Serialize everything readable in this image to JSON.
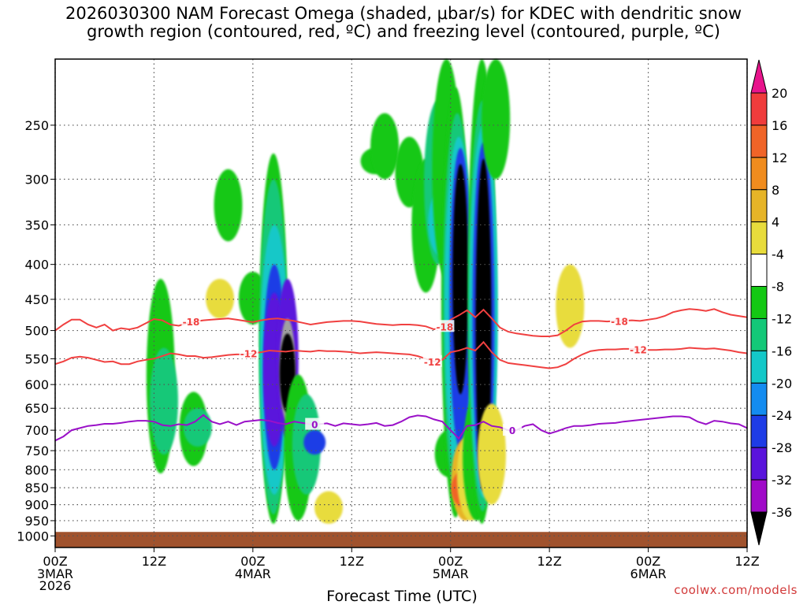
{
  "title": {
    "line1": "2026030300 NAM Forecast Omega (shaded, μbar/s) for KDEC with dendritic snow",
    "line2": "growth region (contoured, red, ºC) and freezing level (contoured, purple, ºC)"
  },
  "credit": "coolwx.com/models",
  "chart_data": {
    "type": "heatmap",
    "title": "2026030300 NAM Forecast Omega (shaded, μbar/s) for KDEC with dendritic snow growth region (contoured, red, ºC) and freezing level (contoured, purple, ºC)",
    "xlabel": "Forecast Time (UTC)",
    "ylabel": "",
    "x_range_hours": [
      0,
      84
    ],
    "y_range_mb": [
      1040,
      200
    ],
    "y_scale": "log",
    "grid": true,
    "x_ticks": [
      {
        "hour": 0,
        "label": "00Z",
        "sub": [
          "3MAR",
          "2026"
        ]
      },
      {
        "hour": 12,
        "label": "12Z",
        "sub": []
      },
      {
        "hour": 24,
        "label": "00Z",
        "sub": [
          "4MAR"
        ]
      },
      {
        "hour": 36,
        "label": "12Z",
        "sub": []
      },
      {
        "hour": 48,
        "label": "00Z",
        "sub": [
          "5MAR"
        ]
      },
      {
        "hour": 60,
        "label": "12Z",
        "sub": []
      },
      {
        "hour": 72,
        "label": "00Z",
        "sub": [
          "6MAR"
        ]
      },
      {
        "hour": 84,
        "label": "12Z",
        "sub": []
      }
    ],
    "y_ticks": [
      250,
      300,
      350,
      400,
      450,
      500,
      550,
      600,
      650,
      700,
      750,
      800,
      850,
      900,
      950,
      1000
    ],
    "colorbar": {
      "labels": [
        "20",
        "16",
        "12",
        "8",
        "4",
        "-4",
        "-8",
        "-12",
        "-16",
        "-20",
        "-24",
        "-28",
        "-32",
        "-36"
      ],
      "colors": [
        "#e8148c",
        "#f03c3c",
        "#f06428",
        "#f08c1e",
        "#e6b428",
        "#e8dc3c",
        "#ffffff",
        "#14c814",
        "#14c878",
        "#14c8c8",
        "#148cf0",
        "#1e3ce6",
        "#5a14dc",
        "#a00ac8",
        "#a0a0a0",
        "#000000"
      ]
    },
    "omega_cells": [
      {
        "hour": 12.8,
        "p_top": 420,
        "p_bot": 810,
        "value": -6
      },
      {
        "hour": 13.2,
        "p_top": 530,
        "p_bot": 760,
        "value": -10
      },
      {
        "hour": 16.8,
        "p_top": 615,
        "p_bot": 790,
        "value": -6
      },
      {
        "hour": 17.3,
        "p_top": 650,
        "p_bot": 740,
        "value": -10
      },
      {
        "hour": 20.0,
        "p_top": 420,
        "p_bot": 480,
        "value": 6
      },
      {
        "hour": 21.0,
        "p_top": 290,
        "p_bot": 370,
        "value": -6
      },
      {
        "hour": 24.0,
        "p_top": 410,
        "p_bot": 490,
        "value": -6
      },
      {
        "hour": 26.5,
        "p_top": 275,
        "p_bot": 960,
        "value": -6
      },
      {
        "hour": 26.5,
        "p_top": 300,
        "p_bot": 930,
        "value": -10
      },
      {
        "hour": 26.6,
        "p_top": 350,
        "p_bot": 870,
        "value": -14
      },
      {
        "hour": 26.6,
        "p_top": 400,
        "p_bot": 800,
        "value": -22
      },
      {
        "hour": 26.6,
        "p_top": 440,
        "p_bot": 740,
        "value": -26
      },
      {
        "hour": 28.2,
        "p_top": 420,
        "p_bot": 720,
        "value": -26
      },
      {
        "hour": 28.2,
        "p_top": 480,
        "p_bot": 680,
        "value": -34
      },
      {
        "hour": 28.2,
        "p_top": 505,
        "p_bot": 660,
        "value": -38
      },
      {
        "hour": 29.5,
        "p_top": 580,
        "p_bot": 950,
        "value": -6
      },
      {
        "hour": 30.5,
        "p_top": 620,
        "p_bot": 870,
        "value": -10
      },
      {
        "hour": 31.5,
        "p_top": 700,
        "p_bot": 760,
        "value": -22
      },
      {
        "hour": 33.2,
        "p_top": 860,
        "p_bot": 960,
        "value": 6
      },
      {
        "hour": 38.8,
        "p_top": 270,
        "p_bot": 295,
        "value": -6
      },
      {
        "hour": 40.0,
        "p_top": 240,
        "p_bot": 300,
        "value": -6
      },
      {
        "hour": 43.0,
        "p_top": 260,
        "p_bot": 330,
        "value": -6
      },
      {
        "hour": 45.0,
        "p_top": 280,
        "p_bot": 440,
        "value": -6
      },
      {
        "hour": 46.5,
        "p_top": 230,
        "p_bot": 400,
        "value": -10
      },
      {
        "hour": 47.0,
        "p_top": 310,
        "p_bot": 390,
        "value": -14
      },
      {
        "hour": 47.5,
        "p_top": 200,
        "p_bot": 420,
        "value": -6
      },
      {
        "hour": 47.8,
        "p_top": 700,
        "p_bot": 820,
        "value": -6
      },
      {
        "hour": 48.6,
        "p_top": 220,
        "p_bot": 940,
        "value": -6
      },
      {
        "hour": 48.8,
        "p_top": 240,
        "p_bot": 880,
        "value": -10
      },
      {
        "hour": 49.0,
        "p_top": 260,
        "p_bot": 820,
        "value": -14
      },
      {
        "hour": 49.2,
        "p_top": 270,
        "p_bot": 750,
        "value": -22
      },
      {
        "hour": 49.2,
        "p_top": 285,
        "p_bot": 620,
        "value": -38
      },
      {
        "hour": 49.8,
        "p_top": 720,
        "p_bot": 950,
        "value": 10
      },
      {
        "hour": 49.8,
        "p_top": 800,
        "p_bot": 910,
        "value": 18
      },
      {
        "hour": 50.5,
        "p_top": 700,
        "p_bot": 950,
        "value": 6
      },
      {
        "hour": 51.2,
        "p_top": 620,
        "p_bot": 950,
        "value": -6
      },
      {
        "hour": 51.8,
        "p_top": 200,
        "p_bot": 960,
        "value": -6
      },
      {
        "hour": 51.9,
        "p_top": 230,
        "p_bot": 920,
        "value": -10
      },
      {
        "hour": 52.0,
        "p_top": 250,
        "p_bot": 880,
        "value": -14
      },
      {
        "hour": 52.0,
        "p_top": 265,
        "p_bot": 860,
        "value": -22
      },
      {
        "hour": 52.0,
        "p_top": 280,
        "p_bot": 860,
        "value": -38
      },
      {
        "hour": 53.0,
        "p_top": 640,
        "p_bot": 900,
        "value": 6
      },
      {
        "hour": 53.5,
        "p_top": 200,
        "p_bot": 300,
        "value": -6
      },
      {
        "hour": 62.5,
        "p_top": 400,
        "p_bot": 530,
        "value": 6
      }
    ],
    "contours": [
      {
        "label": "-18",
        "color": "#f04040",
        "label_hours": [
          16.5,
          47.3,
          68.5
        ],
        "x": [
          0,
          1,
          2,
          3,
          4,
          5,
          6,
          7,
          8,
          9,
          10,
          11,
          12,
          13,
          14,
          15,
          16,
          17,
          18,
          19,
          20,
          21,
          22,
          23,
          24,
          25,
          26,
          27,
          28,
          29,
          30,
          31,
          32,
          33,
          34,
          35,
          36,
          37,
          38,
          39,
          40,
          41,
          42,
          43,
          44,
          45,
          46,
          47,
          48,
          49,
          50,
          51,
          52,
          53,
          54,
          55,
          56,
          57,
          58,
          59,
          60,
          61,
          62,
          63,
          64,
          65,
          66,
          67,
          68,
          69,
          70,
          71,
          72,
          73,
          74,
          75,
          76,
          77,
          78,
          79,
          80,
          81,
          82,
          83,
          84
        ],
        "y": [
          500,
          490,
          482,
          482,
          490,
          495,
          490,
          500,
          496,
          498,
          495,
          488,
          481,
          483,
          490,
          492,
          488,
          485,
          483,
          482,
          481,
          480,
          482,
          484,
          486,
          483,
          481,
          480,
          482,
          484,
          487,
          490,
          488,
          486,
          485,
          484,
          484,
          485,
          487,
          489,
          490,
          491,
          490,
          490,
          491,
          493,
          498,
          493,
          482,
          475,
          467,
          478,
          466,
          480,
          495,
          502,
          505,
          507,
          509,
          510,
          510,
          508,
          500,
          490,
          485,
          484,
          484,
          485,
          484,
          484,
          483,
          484,
          482,
          480,
          476,
          470,
          467,
          465,
          466,
          468,
          465,
          470,
          474,
          476,
          478
        ]
      },
      {
        "label": "-12",
        "color": "#f04040",
        "label_hours": [
          23.5,
          45.8,
          70.8
        ],
        "x": [
          0,
          1,
          2,
          3,
          4,
          5,
          6,
          7,
          8,
          9,
          10,
          11,
          12,
          13,
          14,
          15,
          16,
          17,
          18,
          19,
          20,
          21,
          22,
          23,
          24,
          25,
          26,
          27,
          28,
          29,
          30,
          31,
          32,
          33,
          34,
          35,
          36,
          37,
          38,
          39,
          40,
          41,
          42,
          43,
          44,
          45,
          46,
          47,
          48,
          49,
          50,
          51,
          52,
          53,
          54,
          55,
          56,
          57,
          58,
          59,
          60,
          61,
          62,
          63,
          64,
          65,
          66,
          67,
          68,
          69,
          70,
          71,
          72,
          73,
          74,
          75,
          76,
          77,
          78,
          79,
          80,
          81,
          82,
          83,
          84
        ],
        "y": [
          560,
          555,
          548,
          546,
          548,
          552,
          556,
          555,
          560,
          560,
          555,
          552,
          550,
          545,
          540,
          542,
          545,
          545,
          548,
          547,
          545,
          543,
          542,
          542,
          540,
          538,
          535,
          536,
          537,
          535,
          536,
          537,
          535,
          536,
          536,
          537,
          538,
          540,
          539,
          538,
          539,
          540,
          541,
          542,
          545,
          550,
          555,
          552,
          538,
          535,
          530,
          535,
          520,
          538,
          552,
          558,
          560,
          562,
          564,
          566,
          568,
          566,
          560,
          550,
          542,
          536,
          534,
          533,
          533,
          532,
          532,
          533,
          534,
          534,
          533,
          533,
          532,
          530,
          531,
          532,
          531,
          533,
          535,
          538,
          540
        ]
      },
      {
        "label": "0",
        "color": "#9a10c8",
        "label_hours": [
          31.5,
          55.5
        ],
        "x": [
          0,
          1,
          2,
          3,
          4,
          5,
          6,
          7,
          8,
          9,
          10,
          11,
          12,
          13,
          14,
          15,
          16,
          17,
          18,
          19,
          20,
          21,
          22,
          23,
          24,
          25,
          26,
          27,
          28,
          29,
          30,
          31,
          32,
          33,
          34,
          35,
          36,
          37,
          38,
          39,
          40,
          41,
          42,
          43,
          44,
          45,
          46,
          47,
          48,
          49,
          50,
          51,
          52,
          53,
          54,
          55,
          56,
          57,
          58,
          59,
          60,
          61,
          62,
          63,
          64,
          65,
          66,
          67,
          68,
          69,
          70,
          71,
          72,
          73,
          74,
          75,
          76,
          77,
          78,
          79,
          80,
          81,
          82,
          83,
          84
        ],
        "y": [
          725,
          715,
          700,
          695,
          690,
          688,
          685,
          685,
          683,
          680,
          678,
          678,
          680,
          688,
          690,
          686,
          688,
          680,
          665,
          680,
          686,
          680,
          688,
          680,
          678,
          676,
          678,
          683,
          686,
          680,
          683,
          686,
          686,
          684,
          690,
          684,
          686,
          688,
          686,
          683,
          690,
          688,
          680,
          670,
          666,
          668,
          675,
          680,
          700,
          720,
          690,
          688,
          680,
          690,
          693,
          700,
          700,
          690,
          686,
          700,
          708,
          702,
          695,
          690,
          690,
          688,
          685,
          684,
          683,
          680,
          678,
          676,
          674,
          672,
          670,
          668,
          668,
          670,
          680,
          686,
          678,
          680,
          684,
          686,
          695
        ]
      }
    ]
  }
}
